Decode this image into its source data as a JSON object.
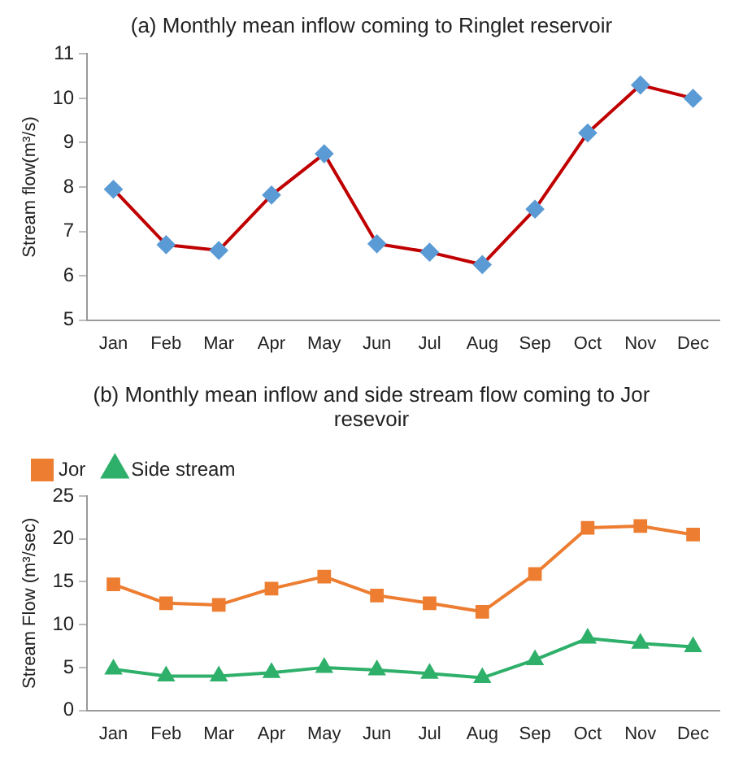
{
  "chart_data": [
    {
      "type": "line",
      "title": "(a) Monthly mean inflow coming to Ringlet reservoir",
      "ylabel": "Stream flow(m³/s)",
      "categories": [
        "Jan",
        "Feb",
        "Mar",
        "Apr",
        "May",
        "Jun",
        "Jul",
        "Aug",
        "Sep",
        "Oct",
        "Nov",
        "Dec"
      ],
      "series": [
        {
          "color": "#c00000",
          "colors": [
            "#5b9bd5",
            "#5b9bd5",
            "#5b9bd5",
            "#5b9bd5",
            "#5b9bd5",
            "#5b9bd5",
            "#5b9bd5",
            "#5b9bd5",
            "#5b9bd5",
            "#5b9bd5",
            "#5b9bd5",
            "#5b9bd5"
          ],
          "marker": "diamond",
          "values": [
            7.95,
            6.7,
            6.57,
            7.82,
            8.75,
            6.72,
            6.53,
            6.25,
            7.5,
            9.22,
            10.3,
            10.0
          ]
        }
      ],
      "ylim": [
        5,
        11
      ],
      "yticks": [
        5,
        6,
        7,
        8,
        9,
        10,
        11
      ],
      "grid": false,
      "legend": false
    },
    {
      "type": "line",
      "title": "(b) Monthly mean inflow and side stream flow coming to Jor resevoir",
      "ylabel": "Stream Flow (m³/sec)",
      "categories": [
        "Jan",
        "Feb",
        "Mar",
        "Apr",
        "May",
        "Jun",
        "Jul",
        "Aug",
        "Sep",
        "Oct",
        "Nov",
        "Dec"
      ],
      "series": [
        {
          "name": "Jor",
          "color": "#ed7d31",
          "marker": "square",
          "values": [
            14.7,
            12.5,
            12.3,
            14.2,
            15.6,
            13.4,
            12.5,
            11.5,
            15.9,
            21.3,
            21.5,
            20.5
          ]
        },
        {
          "name": "Side stream",
          "color": "#2eb06a",
          "marker": "triangle",
          "values": [
            4.8,
            4.0,
            4.0,
            4.4,
            5.0,
            4.7,
            4.3,
            3.8,
            5.9,
            8.4,
            7.8,
            7.4
          ]
        }
      ],
      "ylim": [
        0,
        25
      ],
      "yticks": [
        0,
        5,
        10,
        15,
        20,
        25
      ],
      "grid": false,
      "legend": "top left"
    }
  ]
}
